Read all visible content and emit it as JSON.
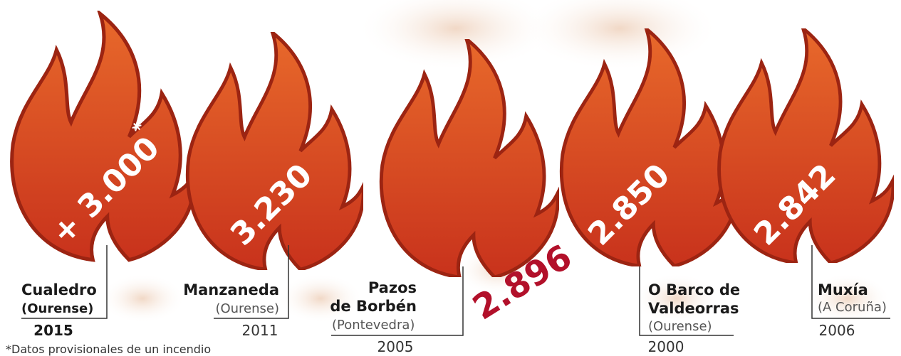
{
  "fires": [
    {
      "place": "Cualedro",
      "province": "(Ourense)",
      "year": "2015",
      "area": "+ 3.000",
      "mark": "*"
    },
    {
      "place": "Manzaneda",
      "province": "(Ourense)",
      "year": "2011",
      "area": "3.230"
    },
    {
      "place_lines": [
        "Pazos",
        "de Borbén"
      ],
      "province": "(Pontevedra)",
      "year": "2005",
      "area": "2.896"
    },
    {
      "place_lines": [
        "O Barco de",
        "Valdeorras"
      ],
      "province": "(Ourense)",
      "year": "2000",
      "area": "2.850"
    },
    {
      "place": "Muxía",
      "province": "(A Coruña)",
      "year": "2006",
      "area": "2.842"
    }
  ],
  "footnote": "*Datos provisionales de un incendio"
}
